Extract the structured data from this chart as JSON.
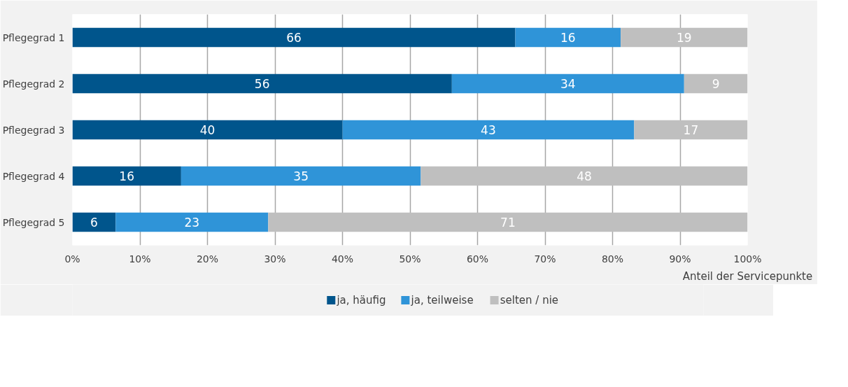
{
  "chart_data": {
    "type": "bar",
    "orientation": "horizontal",
    "stacked": true,
    "xlabel": "Anteil der Servicepunkte",
    "categories": [
      "Pflegegrad 1",
      "Pflegegrad 2",
      "Pflegegrad 3",
      "Pflegegrad 4",
      "Pflegegrad 5"
    ],
    "series": [
      {
        "name": "ja, häufig",
        "color": "#00558c",
        "values": [
          65.6,
          56.2,
          40.0,
          16.1,
          6.4
        ],
        "value_labels": [
          "66",
          "56",
          "40",
          "16",
          "6"
        ]
      },
      {
        "name": "ja, teilweise",
        "color": "#2f94d8",
        "values": [
          15.6,
          34.4,
          43.2,
          35.5,
          22.6
        ],
        "value_labels": [
          "16",
          "34",
          "43",
          "35",
          "23"
        ]
      },
      {
        "name": "selten / nie",
        "color": "#bfbfbf",
        "values": [
          18.8,
          9.4,
          16.8,
          48.4,
          71.0
        ],
        "value_labels": [
          "19",
          "9",
          "17",
          "48",
          "71"
        ]
      }
    ],
    "xlim": [
      0,
      100
    ],
    "xticks": [
      {
        "value": 0,
        "label": "0%"
      },
      {
        "value": 10,
        "label": "10%"
      },
      {
        "value": 20,
        "label": "20%"
      },
      {
        "value": 30,
        "label": "30%"
      },
      {
        "value": 40,
        "label": "40%"
      },
      {
        "value": 50,
        "label": "50%"
      },
      {
        "value": 60,
        "label": "60%"
      },
      {
        "value": 70,
        "label": "70%"
      },
      {
        "value": 80,
        "label": "80%"
      },
      {
        "value": 90,
        "label": "90%"
      },
      {
        "value": 100,
        "label": "100%"
      }
    ],
    "grid": "x",
    "legend": "bottom"
  }
}
